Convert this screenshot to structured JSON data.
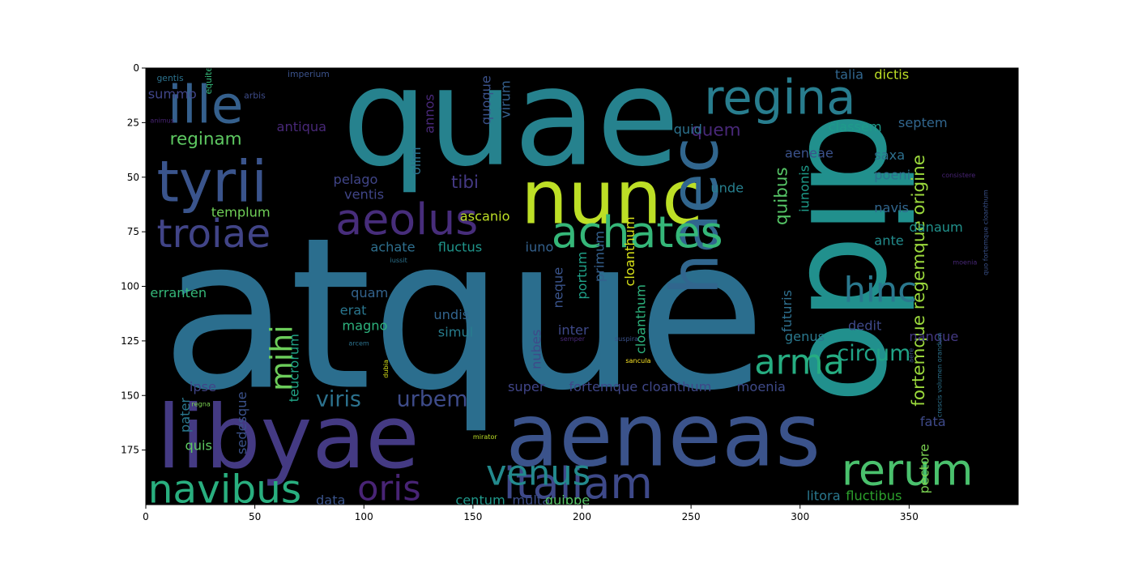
{
  "chart_data": {
    "type": "wordcloud",
    "background": "#000000",
    "xlim": [
      0,
      400
    ],
    "ylim": [
      200,
      0
    ],
    "x_ticks": [
      0,
      50,
      100,
      150,
      200,
      250,
      300,
      350
    ],
    "y_ticks": [
      0,
      25,
      50,
      75,
      100,
      125,
      150,
      175
    ],
    "words": [
      {
        "text": "atque",
        "x": 7,
        "y": 146,
        "size": 96,
        "color": "#2b6e8e",
        "rot": 0
      },
      {
        "text": "quae",
        "x": 90,
        "y": 44,
        "size": 62,
        "color": "#26828e",
        "rot": 0
      },
      {
        "text": "dido",
        "x": 305,
        "y": 20,
        "size": 62,
        "color": "#21908d",
        "rot": 90
      },
      {
        "text": "aeneas",
        "x": 165,
        "y": 182,
        "size": 40,
        "color": "#3b538b",
        "rot": 0
      },
      {
        "text": "libyae",
        "x": 5,
        "y": 183,
        "size": 40,
        "color": "#443a83",
        "rot": 0
      },
      {
        "text": "nunc",
        "x": 172,
        "y": 71,
        "size": 34,
        "color": "#bddf26",
        "rot": 0
      },
      {
        "text": "haec",
        "x": 262,
        "y": 104,
        "size": 30,
        "color": "#31668e",
        "rot": -90
      },
      {
        "text": "tyrii",
        "x": 5,
        "y": 61,
        "size": 26,
        "color": "#3a548c",
        "rot": 0
      },
      {
        "text": "ille",
        "x": 10,
        "y": 25,
        "size": 24,
        "color": "#35608d",
        "rot": 0
      },
      {
        "text": "regina",
        "x": 256,
        "y": 21,
        "size": 22,
        "color": "#287d8e",
        "rot": 0
      },
      {
        "text": "achates",
        "x": 186,
        "y": 82,
        "size": 20,
        "color": "#35b779",
        "rot": 0
      },
      {
        "text": "aeolus",
        "x": 87,
        "y": 76,
        "size": 20,
        "color": "#472d7b",
        "rot": 0
      },
      {
        "text": "troiae",
        "x": 5,
        "y": 82,
        "size": 18,
        "color": "#414487",
        "rot": 0
      },
      {
        "text": "italiam",
        "x": 164,
        "y": 197,
        "size": 20,
        "color": "#3e4989",
        "rot": 0
      },
      {
        "text": "navibus",
        "x": 1,
        "y": 199,
        "size": 18,
        "color": "#29af7f",
        "rot": 0
      },
      {
        "text": "rerum",
        "x": 319,
        "y": 191,
        "size": 20,
        "color": "#4ac16d",
        "rot": 0
      },
      {
        "text": "venus",
        "x": 156,
        "y": 191,
        "size": 16,
        "color": "#238a8d",
        "rot": 0
      },
      {
        "text": "oris",
        "x": 97,
        "y": 198,
        "size": 16,
        "color": "#482475",
        "rot": 0
      },
      {
        "text": "arma",
        "x": 279,
        "y": 140,
        "size": 16,
        "color": "#26ad81",
        "rot": 0
      },
      {
        "text": "hinc",
        "x": 320,
        "y": 107,
        "size": 16,
        "color": "#2a788e",
        "rot": 0
      },
      {
        "text": "mihi",
        "x": 67,
        "y": 148,
        "size": 14,
        "color": "#6ccd5a",
        "rot": -90
      },
      {
        "text": "circum",
        "x": 317,
        "y": 134,
        "size": 10,
        "color": "#20a386",
        "rot": 0
      },
      {
        "text": "urbem",
        "x": 115,
        "y": 155,
        "size": 10,
        "color": "#3e4c8a",
        "rot": 0
      },
      {
        "text": "viris",
        "x": 78,
        "y": 155,
        "size": 10,
        "color": "#2c728e",
        "rot": 0
      },
      {
        "text": "reginam",
        "x": 11,
        "y": 35,
        "size": 8,
        "color": "#5ec962",
        "rot": 0
      },
      {
        "text": "quem",
        "x": 250,
        "y": 31,
        "size": 8,
        "color": "#482878",
        "rot": 0
      },
      {
        "text": "tibi",
        "x": 140,
        "y": 55,
        "size": 8,
        "color": "#443983",
        "rot": 0
      },
      {
        "text": "pelago",
        "x": 86,
        "y": 53,
        "size": 6,
        "color": "#404588",
        "rot": 0
      },
      {
        "text": "templum",
        "x": 30,
        "y": 68,
        "size": 6,
        "color": "#70cf57",
        "rot": 0
      },
      {
        "text": "erranten",
        "x": 2,
        "y": 105,
        "size": 6,
        "color": "#35b779",
        "rot": 0
      },
      {
        "text": "fortemque cloanthum",
        "x": 194,
        "y": 148,
        "size": 6,
        "color": "#3f4788",
        "rot": 0
      },
      {
        "text": "moenia",
        "x": 271,
        "y": 148,
        "size": 6,
        "color": "#3e4a89",
        "rot": 0
      },
      {
        "text": "fortemque regemque origine",
        "x": 357,
        "y": 155,
        "size": 8,
        "color": "#9bd93c",
        "rot": -90
      },
      {
        "text": "quibus",
        "x": 294,
        "y": 72,
        "size": 8,
        "color": "#56c667",
        "rot": -90
      },
      {
        "text": "achate",
        "x": 103,
        "y": 84,
        "size": 6,
        "color": "#2e6f8e",
        "rot": 0
      },
      {
        "text": "fluctus",
        "x": 134,
        "y": 84,
        "size": 6,
        "color": "#1f958b",
        "rot": 0
      },
      {
        "text": "iuno",
        "x": 174,
        "y": 84,
        "size": 6,
        "color": "#34618d",
        "rot": 0
      },
      {
        "text": "magno",
        "x": 90,
        "y": 120,
        "size": 6,
        "color": "#2db27d",
        "rot": 0
      },
      {
        "text": "quam",
        "x": 94,
        "y": 105,
        "size": 6,
        "color": "#33638d",
        "rot": 0
      },
      {
        "text": "erat",
        "x": 89,
        "y": 113,
        "size": 6,
        "color": "#2a768e",
        "rot": 0
      },
      {
        "text": "saxa",
        "x": 334,
        "y": 42,
        "size": 6,
        "color": "#2d708e",
        "rot": 0
      },
      {
        "text": "classem",
        "x": 313,
        "y": 29,
        "size": 6,
        "color": "#1e9b8a",
        "rot": 0
      },
      {
        "text": "aeneae",
        "x": 293,
        "y": 41,
        "size": 6,
        "color": "#3b528b",
        "rot": 0
      },
      {
        "text": "poeni",
        "x": 334,
        "y": 51,
        "size": 6,
        "color": "#2d708e",
        "rot": 0
      },
      {
        "text": "navis",
        "x": 334,
        "y": 66,
        "size": 6,
        "color": "#31668e",
        "rot": 0
      },
      {
        "text": "danaum",
        "x": 350,
        "y": 75,
        "size": 6,
        "color": "#21918c",
        "rot": 0
      },
      {
        "text": "ante",
        "x": 334,
        "y": 81,
        "size": 6,
        "color": "#228c8d",
        "rot": 0
      },
      {
        "text": "genus",
        "x": 293,
        "y": 125,
        "size": 6,
        "color": "#2a788e",
        "rot": 0
      },
      {
        "text": "dedit",
        "x": 322,
        "y": 120,
        "size": 6,
        "color": "#3e4989",
        "rot": 0
      },
      {
        "text": "nanque",
        "x": 350,
        "y": 125,
        "size": 6,
        "color": "#443983",
        "rot": 0
      },
      {
        "text": "fata",
        "x": 355,
        "y": 164,
        "size": 6,
        "color": "#3e4a89",
        "rot": 0
      },
      {
        "text": "pectore",
        "x": 359,
        "y": 195,
        "size": 6,
        "color": "#7ad151",
        "rot": -90
      },
      {
        "text": "litora",
        "x": 303,
        "y": 198,
        "size": 6,
        "color": "#2a788e",
        "rot": 0
      },
      {
        "text": "fluctibus",
        "x": 321,
        "y": 198,
        "size": 6,
        "color": "#2ca02c",
        "rot": 0
      },
      {
        "text": "centum",
        "x": 142,
        "y": 200,
        "size": 6,
        "color": "#1f988b",
        "rot": 0
      },
      {
        "text": "multa",
        "x": 168,
        "y": 200,
        "size": 6,
        "color": "#3d4e8a",
        "rot": 0
      },
      {
        "text": "quippe",
        "x": 183,
        "y": 200,
        "size": 6,
        "color": "#56c667",
        "rot": 0
      },
      {
        "text": "data",
        "x": 78,
        "y": 200,
        "size": 6,
        "color": "#3a548c",
        "rot": 0
      },
      {
        "text": "super",
        "x": 166,
        "y": 148,
        "size": 6,
        "color": "#404588",
        "rot": 0
      },
      {
        "text": "teucrorum",
        "x": 70,
        "y": 153,
        "size": 6,
        "color": "#20a386",
        "rot": -90
      },
      {
        "text": "ipse",
        "x": 20,
        "y": 148,
        "size": 6,
        "color": "#404588",
        "rot": 0
      },
      {
        "text": "pater",
        "x": 20,
        "y": 167,
        "size": 6,
        "color": "#2a788e",
        "rot": -90
      },
      {
        "text": "quis",
        "x": 18,
        "y": 175,
        "size": 6,
        "color": "#5ec962",
        "rot": 0
      },
      {
        "text": "sedesque",
        "x": 46,
        "y": 177,
        "size": 6,
        "color": "#3b528b",
        "rot": -90
      },
      {
        "text": "summo",
        "x": 1,
        "y": 14,
        "size": 6,
        "color": "#404588",
        "rot": 0
      },
      {
        "text": "antiqua",
        "x": 60,
        "y": 29,
        "size": 6,
        "color": "#482878",
        "rot": 0
      },
      {
        "text": "ventis",
        "x": 91,
        "y": 60,
        "size": 6,
        "color": "#404588",
        "rot": 0
      },
      {
        "text": "ascanio",
        "x": 144,
        "y": 70,
        "size": 6,
        "color": "#bddf26",
        "rot": 0
      },
      {
        "text": "talia",
        "x": 316,
        "y": 5,
        "size": 6,
        "color": "#31668e",
        "rot": 0
      },
      {
        "text": "dictis",
        "x": 334,
        "y": 5,
        "size": 6,
        "color": "#bddf26",
        "rot": 0
      },
      {
        "text": "septem",
        "x": 345,
        "y": 27,
        "size": 6,
        "color": "#31668e",
        "rot": 0
      },
      {
        "text": "quid",
        "x": 242,
        "y": 30,
        "size": 6,
        "color": "#2c728e",
        "rot": 0
      },
      {
        "text": "unde",
        "x": 259,
        "y": 57,
        "size": 6,
        "color": "#277f8e",
        "rot": 0
      },
      {
        "text": "iunonis",
        "x": 304,
        "y": 66,
        "size": 6,
        "color": "#1e9b8a",
        "rot": -90
      },
      {
        "text": "portum",
        "x": 202,
        "y": 106,
        "size": 6,
        "color": "#1fa188",
        "rot": -90
      },
      {
        "text": "primum",
        "x": 210,
        "y": 98,
        "size": 6,
        "color": "#35608d",
        "rot": -90
      },
      {
        "text": "cloanthum",
        "x": 224,
        "y": 100,
        "size": 6,
        "color": "#d8e219",
        "rot": -90
      },
      {
        "text": "cloanthum",
        "x": 229,
        "y": 131,
        "size": 6,
        "color": "#2db27d",
        "rot": -90
      },
      {
        "text": "neque",
        "x": 191,
        "y": 110,
        "size": 6,
        "color": "#3a548c",
        "rot": -90
      },
      {
        "text": "futuris",
        "x": 296,
        "y": 121,
        "size": 6,
        "color": "#2e6f8e",
        "rot": -90
      },
      {
        "text": "undis",
        "x": 132,
        "y": 115,
        "size": 6,
        "color": "#32648e",
        "rot": 0
      },
      {
        "text": "simul",
        "x": 134,
        "y": 123,
        "size": 6,
        "color": "#287d8e",
        "rot": 0
      },
      {
        "text": "inter",
        "x": 189,
        "y": 122,
        "size": 6,
        "color": "#3e4989",
        "rot": 0
      },
      {
        "text": "nubes",
        "x": 181,
        "y": 138,
        "size": 6,
        "color": "#3e4a89",
        "rot": -90
      },
      {
        "text": "olim",
        "x": 126,
        "y": 49,
        "size": 6,
        "color": "#2c728e",
        "rot": -90
      },
      {
        "text": "annos",
        "x": 132,
        "y": 30,
        "size": 6,
        "color": "#482878",
        "rot": -90
      },
      {
        "text": "quoque",
        "x": 158,
        "y": 26,
        "size": 6,
        "color": "#3b528b",
        "rot": -90
      },
      {
        "text": "virum",
        "x": 167,
        "y": 23,
        "size": 6,
        "color": "#35608d",
        "rot": -90
      },
      {
        "text": "gentis",
        "x": 5,
        "y": 6,
        "size": 4,
        "color": "#2c728e",
        "rot": 0
      },
      {
        "text": "equite",
        "x": 30,
        "y": 12,
        "size": 4,
        "color": "#35b779",
        "rot": -90
      },
      {
        "text": "arbis",
        "x": 45,
        "y": 14,
        "size": 4,
        "color": "#3e4c8a",
        "rot": 0
      },
      {
        "text": "imperium",
        "x": 65,
        "y": 4,
        "size": 4,
        "color": "#3b528b",
        "rot": 0
      },
      {
        "text": "animus",
        "x": 2,
        "y": 25,
        "size": 3,
        "color": "#482475",
        "rot": 0
      },
      {
        "text": "regna",
        "x": 21,
        "y": 155,
        "size": 3,
        "color": "#7ad151",
        "rot": 0
      },
      {
        "text": "arcem",
        "x": 93,
        "y": 127,
        "size": 3,
        "color": "#2c728e",
        "rot": 0
      },
      {
        "text": "dubia",
        "x": 111,
        "y": 142,
        "size": 3,
        "color": "#d8e219",
        "rot": -90
      },
      {
        "text": "mirator",
        "x": 150,
        "y": 170,
        "size": 3,
        "color": "#bddf26",
        "rot": 0
      },
      {
        "text": "sancula",
        "x": 220,
        "y": 135,
        "size": 3,
        "color": "#fde725",
        "rot": 0
      },
      {
        "text": "iussit",
        "x": 112,
        "y": 89,
        "size": 3,
        "color": "#2c728e",
        "rot": 0
      },
      {
        "text": "semper",
        "x": 190,
        "y": 125,
        "size": 3,
        "color": "#482878",
        "rot": 0
      },
      {
        "text": "suspira",
        "x": 215,
        "y": 125,
        "size": 3,
        "color": "#3b528b",
        "rot": 0
      },
      {
        "text": "consistere",
        "x": 365,
        "y": 50,
        "size": 3,
        "color": "#482475",
        "rot": 0
      },
      {
        "text": "quo fortemque cloanthum",
        "x": 386,
        "y": 95,
        "size": 3,
        "color": "#3b528b",
        "rot": -90
      },
      {
        "text": "moenia",
        "x": 370,
        "y": 90,
        "size": 3,
        "color": "#482878",
        "rot": 0
      },
      {
        "text": "aere",
        "x": 352,
        "y": 135,
        "size": 3,
        "color": "#3b528b",
        "rot": -90
      },
      {
        "text": "crescis volumen orandum",
        "x": 365,
        "y": 160,
        "size": 3,
        "color": "#2c728e",
        "rot": -90
      }
    ]
  }
}
